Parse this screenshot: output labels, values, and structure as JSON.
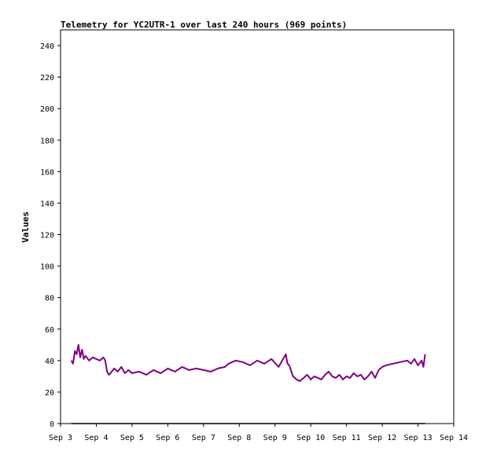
{
  "chart_data": {
    "type": "line",
    "title": "Telemetry for YC2UTR-1 over last 240 hours (969 points)",
    "xlabel": "",
    "ylabel": "Values",
    "xlim": [
      "Sep 3",
      "Sep 14"
    ],
    "ylim": [
      0,
      250
    ],
    "y_ticks": [
      0,
      20,
      40,
      60,
      80,
      100,
      120,
      140,
      160,
      180,
      200,
      220,
      240
    ],
    "x_tick_labels": [
      "Sep 3",
      "Sep 4",
      "Sep 5",
      "Sep 6",
      "Sep 7",
      "Sep 8",
      "Sep 9",
      "Sep 10",
      "Sep 11",
      "Sep 12",
      "Sep 13",
      "Sep 14"
    ],
    "grid": false,
    "colors": {
      "primary": "#800080",
      "baseline": "#000000"
    },
    "series": [
      {
        "name": "",
        "color": "#800080",
        "x": [
          3.6,
          3.65,
          3.7,
          3.75,
          3.8,
          3.85,
          3.9,
          3.95,
          4.0,
          4.1,
          4.2,
          4.3,
          4.4,
          4.5,
          4.55,
          4.6,
          4.65,
          4.7,
          4.8,
          4.9,
          5.0,
          5.1,
          5.2,
          5.3,
          5.5,
          5.7,
          5.9,
          6.1,
          6.3,
          6.5,
          6.7,
          6.9,
          7.1,
          7.3,
          7.5,
          7.7,
          7.9,
          8.0,
          8.2,
          8.4,
          8.6,
          8.8,
          9.0,
          9.2,
          9.4,
          9.6,
          9.65,
          9.7,
          9.8,
          9.9,
          10.0,
          10.1,
          10.2,
          10.3,
          10.4,
          10.5,
          10.6,
          10.7,
          10.8,
          10.9,
          11.0,
          11.1,
          11.2,
          11.3,
          11.4,
          11.5,
          11.6,
          11.7,
          11.8,
          11.9,
          12.0,
          12.1,
          12.2,
          12.3,
          12.4,
          12.6,
          12.8,
          13.0,
          13.1,
          13.2,
          13.3,
          13.4,
          13.45,
          13.5
        ],
        "y": [
          40,
          38,
          46,
          44,
          50,
          42,
          47,
          41,
          43,
          40,
          42,
          41,
          40,
          42,
          40,
          33,
          31,
          32,
          35,
          33,
          36,
          32,
          34,
          32,
          33,
          31,
          34,
          32,
          35,
          33,
          36,
          34,
          35,
          34,
          33,
          35,
          36,
          38,
          40,
          39,
          37,
          40,
          38,
          41,
          36,
          44,
          38,
          37,
          30,
          28,
          27,
          29,
          31,
          28,
          30,
          29,
          28,
          31,
          33,
          30,
          29,
          31,
          28,
          30,
          29,
          32,
          30,
          31,
          28,
          30,
          33,
          29,
          34,
          36,
          37,
          38,
          39,
          40,
          38,
          41,
          37,
          40,
          36,
          44
        ]
      },
      {
        "name": "",
        "color": "#000000",
        "x": [
          3.6,
          13.5
        ],
        "y": [
          0,
          0
        ]
      }
    ]
  }
}
